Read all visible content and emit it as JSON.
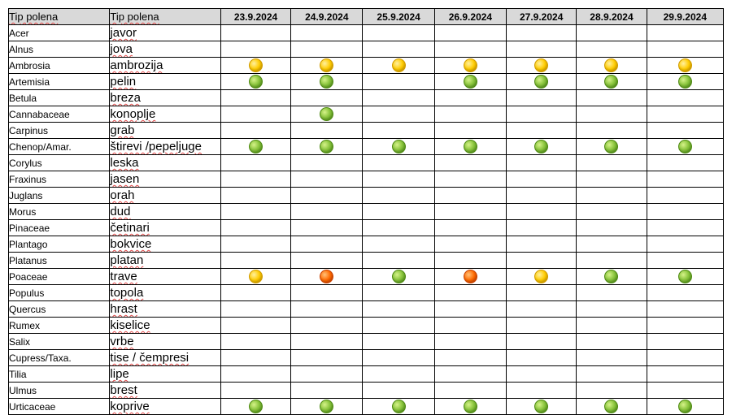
{
  "table": {
    "header": {
      "col1": "Tip polena",
      "col2": "Tip polena",
      "dates": [
        "23.9.2024",
        "24.9.2024",
        "25.9.2024",
        "26.9.2024",
        "27.9.2024",
        "28.9.2024",
        "29.9.2024"
      ]
    },
    "legend_colors": {
      "low": "#8cc63f",
      "moderate": "#ffcc00",
      "high": "#ff6a00"
    },
    "rows": [
      {
        "latin": "Acer",
        "local": "javor",
        "levels": [
          "",
          "",
          "",
          "",
          "",
          "",
          ""
        ]
      },
      {
        "latin": "Alnus",
        "local": "jova",
        "levels": [
          "",
          "",
          "",
          "",
          "",
          "",
          ""
        ]
      },
      {
        "latin": "Ambrosia",
        "local": "ambrozija",
        "levels": [
          "mod",
          "mod",
          "mod",
          "mod",
          "mod",
          "mod",
          "mod"
        ]
      },
      {
        "latin": "Artemisia",
        "local": "pelin",
        "levels": [
          "low",
          "low",
          "",
          "low",
          "low",
          "low",
          "low"
        ]
      },
      {
        "latin": "Betula",
        "local": "breza",
        "levels": [
          "",
          "",
          "",
          "",
          "",
          "",
          ""
        ]
      },
      {
        "latin": "Cannabaceae",
        "local": "konoplje",
        "levels": [
          "",
          "low",
          "",
          "",
          "",
          "",
          ""
        ]
      },
      {
        "latin": "Carpinus",
        "local": "grab",
        "levels": [
          "",
          "",
          "",
          "",
          "",
          "",
          ""
        ]
      },
      {
        "latin": "Chenop/Amar.",
        "local": "štirevi /pepeljuge",
        "levels": [
          "low",
          "low",
          "low",
          "low",
          "low",
          "low",
          "low"
        ]
      },
      {
        "latin": "Corylus",
        "local": "leska",
        "levels": [
          "",
          "",
          "",
          "",
          "",
          "",
          ""
        ]
      },
      {
        "latin": "Fraxinus",
        "local": "jasen",
        "levels": [
          "",
          "",
          "",
          "",
          "",
          "",
          ""
        ]
      },
      {
        "latin": "Juglans",
        "local": "orah",
        "levels": [
          "",
          "",
          "",
          "",
          "",
          "",
          ""
        ]
      },
      {
        "latin": "Morus",
        "local": "dud",
        "levels": [
          "",
          "",
          "",
          "",
          "",
          "",
          ""
        ]
      },
      {
        "latin": "Pinaceae",
        "local": "četinari",
        "levels": [
          "",
          "",
          "",
          "",
          "",
          "",
          ""
        ]
      },
      {
        "latin": "Plantago",
        "local": "bokvice",
        "levels": [
          "",
          "",
          "",
          "",
          "",
          "",
          ""
        ]
      },
      {
        "latin": "Platanus",
        "local": "platan",
        "levels": [
          "",
          "",
          "",
          "",
          "",
          "",
          ""
        ]
      },
      {
        "latin": "Poaceae",
        "local": "trave",
        "levels": [
          "mod",
          "high",
          "low",
          "high",
          "mod",
          "low",
          "low"
        ]
      },
      {
        "latin": "Populus",
        "local": "topola",
        "levels": [
          "",
          "",
          "",
          "",
          "",
          "",
          ""
        ]
      },
      {
        "latin": "Quercus",
        "local": "hrast",
        "levels": [
          "",
          "",
          "",
          "",
          "",
          "",
          ""
        ]
      },
      {
        "latin": "Rumex",
        "local": "kiselice",
        "levels": [
          "",
          "",
          "",
          "",
          "",
          "",
          ""
        ]
      },
      {
        "latin": "Salix",
        "local": "vrbe",
        "levels": [
          "",
          "",
          "",
          "",
          "",
          "",
          ""
        ]
      },
      {
        "latin": "Cupress/Taxa.",
        "local": "tise / čempresi",
        "levels": [
          "",
          "",
          "",
          "",
          "",
          "",
          ""
        ]
      },
      {
        "latin": "Tilia",
        "local": "lipe",
        "levels": [
          "",
          "",
          "",
          "",
          "",
          "",
          ""
        ]
      },
      {
        "latin": "Ulmus",
        "local": "brest",
        "levels": [
          "",
          "",
          "",
          "",
          "",
          "",
          ""
        ]
      },
      {
        "latin": "Urticaceae",
        "local": "koprive",
        "levels": [
          "low",
          "low",
          "low",
          "low",
          "low",
          "low",
          "low"
        ]
      }
    ]
  }
}
